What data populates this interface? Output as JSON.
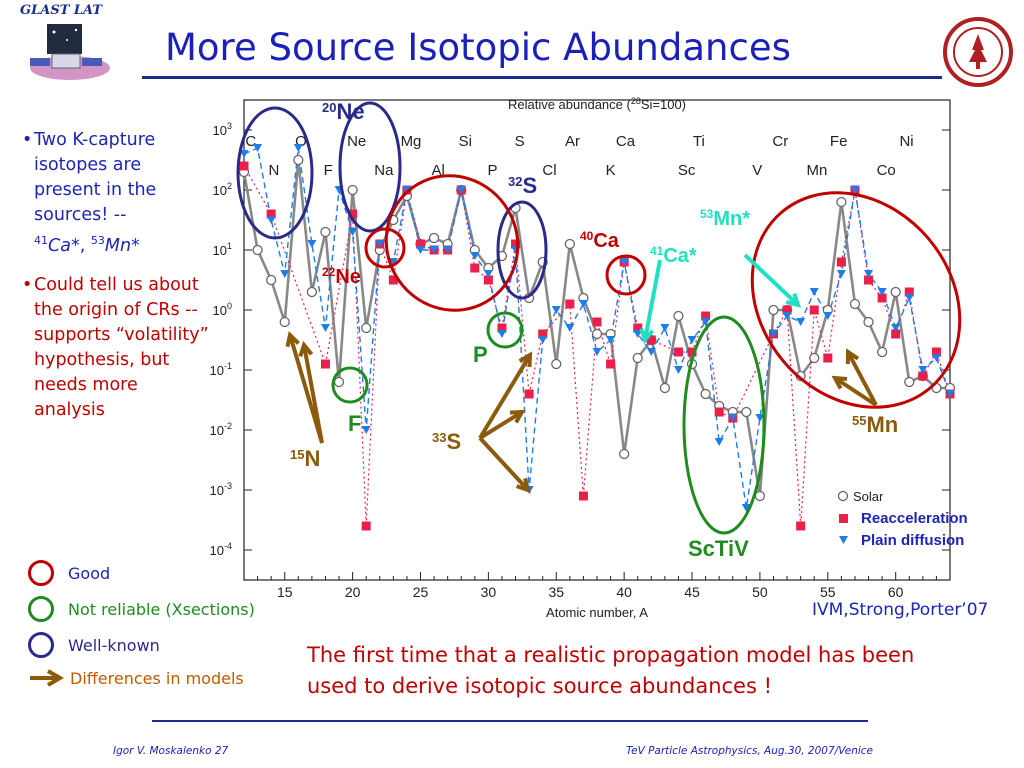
{
  "header": {
    "logo_text": "GLAST LAT",
    "title": "More Source Isotopic Abundances"
  },
  "bullets": [
    {
      "text": "Two K-capture isotopes are present in the sources! --",
      "iso1_mass": "41",
      "iso1_el": "Ca*",
      "sep": ",",
      "iso2_mass": "53",
      "iso2_el": "Mn*"
    },
    {
      "text": "Could tell us about the origin of CRs -- supports “volatility” hypothesis, but needs more analysis"
    }
  ],
  "legend_left": [
    {
      "label": "Good",
      "color": "#c00000"
    },
    {
      "label": "Not reliable (Xsections)",
      "color": "#1f8c1f"
    },
    {
      "label": "Well-known",
      "color": "#2a2a8a"
    },
    {
      "label": "Differences in models",
      "color": "#8b5a0a"
    }
  ],
  "bottom_text": "The first time that a realistic propagation model has been used to derive isotopic source abundances !",
  "citation": "IVM,Strong,Porter’07",
  "footer": {
    "left": "Igor V. Moskalenko  27",
    "right": "TeV Particle Astrophysics, Aug.30, 2007/Venice"
  },
  "colors": {
    "solar": "#888888",
    "reacceleration": "#e8204a",
    "plain": "#1f7ce8",
    "good": "#c00000",
    "not_reliable": "#1f8c1f",
    "well_known": "#2a2a8a",
    "diff": "#8b5a0a",
    "cyan": "#20e0c0"
  },
  "chart_data": {
    "type": "scatter",
    "title_pre": "Relative abundance (",
    "title_sup": "28",
    "title_post": "Si=100)",
    "xlabel": "Atomic number, A",
    "xlim": [
      12,
      64
    ],
    "ylim_log10": [
      -4.5,
      3.5
    ],
    "xticks": [
      15,
      20,
      25,
      30,
      35,
      40,
      45,
      50,
      55,
      60
    ],
    "yticks": [
      {
        "exp": "3",
        "v": 3
      },
      {
        "exp": "2",
        "v": 2
      },
      {
        "exp": "1",
        "v": 1
      },
      {
        "exp": "0",
        "v": 0
      },
      {
        "exp": "-1",
        "v": -1
      },
      {
        "exp": "-2",
        "v": -2
      },
      {
        "exp": "-3",
        "v": -3
      },
      {
        "exp": "-4",
        "v": -4
      }
    ],
    "elements_top": [
      {
        "el": "C",
        "x": 12.5
      },
      {
        "el": "O",
        "x": 16.2
      },
      {
        "el": "Ne",
        "x": 20.3
      },
      {
        "el": "Mg",
        "x": 24.3
      },
      {
        "el": "Si",
        "x": 28.3
      },
      {
        "el": "S",
        "x": 32.3
      },
      {
        "el": "Ar",
        "x": 36.2
      },
      {
        "el": "Ca",
        "x": 40.1
      },
      {
        "el": "Ti",
        "x": 45.5
      },
      {
        "el": "Cr",
        "x": 51.5
      },
      {
        "el": "Fe",
        "x": 55.8
      },
      {
        "el": "Ni",
        "x": 60.8
      }
    ],
    "elements_bottom": [
      {
        "el": "N",
        "x": 14.2
      },
      {
        "el": "F",
        "x": 18.2
      },
      {
        "el": "Na",
        "x": 22.3
      },
      {
        "el": "Al",
        "x": 26.3
      },
      {
        "el": "P",
        "x": 30.3
      },
      {
        "el": "Cl",
        "x": 34.5
      },
      {
        "el": "K",
        "x": 39.0
      },
      {
        "el": "Sc",
        "x": 44.6
      },
      {
        "el": "V",
        "x": 49.8
      },
      {
        "el": "Mn",
        "x": 54.2
      },
      {
        "el": "Co",
        "x": 59.3
      }
    ],
    "legend": [
      {
        "label": "Solar",
        "marker": "circle"
      },
      {
        "label": "Reacceleration",
        "marker": "square"
      },
      {
        "label": "Plain diffusion",
        "marker": "triangle"
      }
    ],
    "series": [
      {
        "name": "Solar",
        "marker": "circle",
        "color": "#888888",
        "points": [
          [
            12,
            2.3
          ],
          [
            13,
            1.0
          ],
          [
            14,
            0.5
          ],
          [
            15,
            -0.2
          ],
          [
            16,
            2.5
          ],
          [
            17,
            0.3
          ],
          [
            18,
            1.3
          ],
          [
            19,
            -1.2
          ],
          [
            20,
            2.0
          ],
          [
            21,
            -0.3
          ],
          [
            22,
            1.0
          ],
          [
            23,
            1.5
          ],
          [
            24,
            1.9
          ],
          [
            25,
            1.1
          ],
          [
            26,
            1.2
          ],
          [
            27,
            1.1
          ],
          [
            28,
            2.0
          ],
          [
            29,
            1.0
          ],
          [
            30,
            0.7
          ],
          [
            31,
            0.9
          ],
          [
            32,
            1.7
          ],
          [
            33,
            0.2
          ],
          [
            34,
            0.8
          ],
          [
            35,
            -0.9
          ],
          [
            36,
            1.1
          ],
          [
            37,
            0.2
          ],
          [
            38,
            -0.4
          ],
          [
            39,
            -0.4
          ],
          [
            40,
            -2.4
          ],
          [
            41,
            -0.8
          ],
          [
            42,
            -0.5
          ],
          [
            43,
            -1.3
          ],
          [
            44,
            -0.1
          ],
          [
            45,
            -0.9
          ],
          [
            46,
            -1.4
          ],
          [
            47,
            -1.6
          ],
          [
            48,
            -1.7
          ],
          [
            49,
            -1.7
          ],
          [
            50,
            -3.1
          ],
          [
            51,
            0.0
          ],
          [
            52,
            0.0
          ],
          [
            53,
            -1.1
          ],
          [
            54,
            -0.8
          ],
          [
            55,
            0.0
          ],
          [
            56,
            1.8
          ],
          [
            57,
            0.1
          ],
          [
            58,
            -0.2
          ],
          [
            59,
            -0.7
          ],
          [
            60,
            0.3
          ],
          [
            61,
            -1.2
          ],
          [
            62,
            -1.1
          ],
          [
            63,
            -1.3
          ],
          [
            64,
            -1.3
          ]
        ]
      },
      {
        "name": "Reacceleration",
        "marker": "square",
        "color": "#e8204a",
        "points": [
          [
            12,
            2.4
          ],
          [
            14,
            1.6
          ],
          [
            18,
            -0.9
          ],
          [
            20,
            1.6
          ],
          [
            21,
            -3.6
          ],
          [
            22,
            1.1
          ],
          [
            23,
            0.5
          ],
          [
            24,
            2.0
          ],
          [
            25,
            1.1
          ],
          [
            26,
            1.0
          ],
          [
            27,
            1.0
          ],
          [
            28,
            2.0
          ],
          [
            29,
            0.7
          ],
          [
            30,
            0.5
          ],
          [
            31,
            -0.3
          ],
          [
            32,
            1.1
          ],
          [
            33,
            -1.4
          ],
          [
            34,
            -0.4
          ],
          [
            36,
            0.1
          ],
          [
            37,
            -3.1
          ],
          [
            38,
            -0.2
          ],
          [
            39,
            -0.9
          ],
          [
            40,
            0.8
          ],
          [
            41,
            -0.3
          ],
          [
            42,
            -0.5
          ],
          [
            44,
            -0.7
          ],
          [
            45,
            -0.7
          ],
          [
            46,
            -0.1
          ],
          [
            47,
            -1.7
          ],
          [
            48,
            -1.8
          ],
          [
            51,
            -0.4
          ],
          [
            52,
            0.0
          ],
          [
            53,
            -3.6
          ],
          [
            54,
            0.0
          ],
          [
            55,
            -0.8
          ],
          [
            56,
            0.8
          ],
          [
            57,
            2.0
          ],
          [
            58,
            0.5
          ],
          [
            59,
            0.2
          ],
          [
            60,
            -0.4
          ],
          [
            61,
            0.3
          ],
          [
            62,
            -1.1
          ],
          [
            63,
            -0.7
          ],
          [
            64,
            -1.4
          ]
        ]
      },
      {
        "name": "Plain diffusion",
        "marker": "triangle",
        "color": "#1f7ce8",
        "points": [
          [
            12,
            2.6
          ],
          [
            13,
            2.7
          ],
          [
            14,
            1.5
          ],
          [
            15,
            0.6
          ],
          [
            16,
            2.7
          ],
          [
            17,
            1.1
          ],
          [
            18,
            -0.3
          ],
          [
            19,
            2.0
          ],
          [
            20,
            1.3
          ],
          [
            21,
            -2.0
          ],
          [
            22,
            1.1
          ],
          [
            23,
            0.8
          ],
          [
            24,
            2.0
          ],
          [
            25,
            1.0
          ],
          [
            26,
            1.0
          ],
          [
            27,
            1.0
          ],
          [
            28,
            2.0
          ],
          [
            29,
            0.9
          ],
          [
            30,
            0.6
          ],
          [
            31,
            -0.4
          ],
          [
            32,
            1.0
          ],
          [
            33,
            -3.0
          ],
          [
            34,
            -0.5
          ],
          [
            35,
            0.0
          ],
          [
            36,
            -0.3
          ],
          [
            37,
            0.1
          ],
          [
            38,
            -0.7
          ],
          [
            39,
            -0.5
          ],
          [
            40,
            0.8
          ],
          [
            41,
            -0.4
          ],
          [
            42,
            -0.7
          ],
          [
            43,
            -0.3
          ],
          [
            44,
            -1.0
          ],
          [
            45,
            -0.5
          ],
          [
            46,
            -0.2
          ],
          [
            47,
            -2.2
          ],
          [
            48,
            -1.8
          ],
          [
            49,
            -3.3
          ],
          [
            50,
            -1.8
          ],
          [
            51,
            -0.4
          ],
          [
            52,
            -0.1
          ],
          [
            53,
            -0.2
          ],
          [
            54,
            0.3
          ],
          [
            55,
            -0.1
          ],
          [
            56,
            0.6
          ],
          [
            57,
            2.0
          ],
          [
            58,
            0.6
          ],
          [
            59,
            0.3
          ],
          [
            60,
            -0.3
          ],
          [
            61,
            0.2
          ],
          [
            62,
            -1.0
          ],
          [
            63,
            -0.8
          ],
          [
            64,
            -1.4
          ]
        ]
      }
    ],
    "ring_labels": [
      {
        "mass": "20",
        "el": "Ne",
        "color": "#2a2a8a"
      },
      {
        "mass": "32",
        "el": "S",
        "color": "#2a2a8a"
      },
      {
        "mass": "22",
        "el": "Ne",
        "color": "#c00000"
      },
      {
        "mass": "40",
        "el": "Ca",
        "color": "#c00000"
      },
      {
        "mass": "41",
        "el": "Ca*",
        "color": "#20e0c0"
      },
      {
        "mass": "53",
        "el": "Mn*",
        "color": "#20e0c0"
      },
      {
        "mass": "",
        "el": "P",
        "color": "#1f8c1f"
      },
      {
        "mass": "",
        "el": "F",
        "color": "#1f8c1f"
      },
      {
        "mass": "15",
        "el": "N",
        "color": "#8b5a0a"
      },
      {
        "mass": "33",
        "el": "S",
        "color": "#8b5a0a"
      },
      {
        "mass": "55",
        "el": "Mn",
        "color": "#8b5a0a"
      },
      {
        "mass": "",
        "el": "ScTiV",
        "color": "#1f8c1f"
      }
    ]
  }
}
